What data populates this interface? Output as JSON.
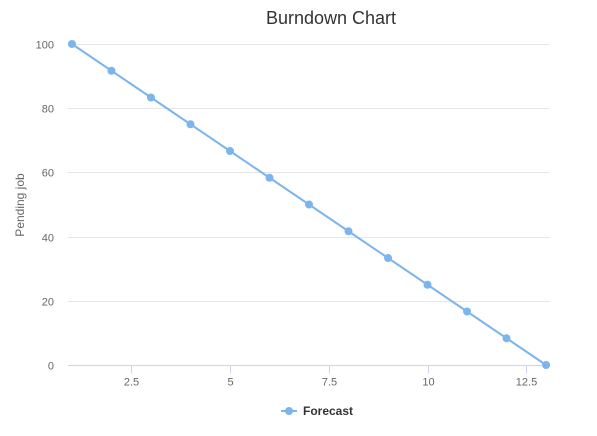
{
  "chart_data": {
    "type": "line",
    "title": "Burndown Chart",
    "xlabel": "",
    "ylabel": "Pending job",
    "xlim": [
      0.9,
      13.1
    ],
    "ylim": [
      0,
      100
    ],
    "x_ticks": [
      2.5,
      5,
      7.5,
      10,
      12.5
    ],
    "x_tick_labels": [
      "2.5",
      "5",
      "7.5",
      "10",
      "12.5"
    ],
    "y_ticks": [
      0,
      20,
      40,
      60,
      80,
      100
    ],
    "y_tick_labels": [
      "0",
      "20",
      "40",
      "60",
      "80",
      "100"
    ],
    "grid": {
      "horizontal": true,
      "vertical": false
    },
    "legend": {
      "position": "bottom-center"
    },
    "colors": {
      "series": "#7cb5ec",
      "grid": "#e6e6e6",
      "axis": "#ccd6eb",
      "text": "#333333",
      "tick_text": "#666666"
    },
    "series": [
      {
        "name": "Forecast",
        "x": [
          1,
          2,
          3,
          4,
          5,
          6,
          7,
          8,
          9,
          10,
          11,
          12,
          13
        ],
        "values": [
          100,
          91.67,
          83.33,
          75,
          66.67,
          58.33,
          50,
          41.67,
          33.33,
          25,
          16.67,
          8.33,
          0
        ]
      }
    ]
  }
}
